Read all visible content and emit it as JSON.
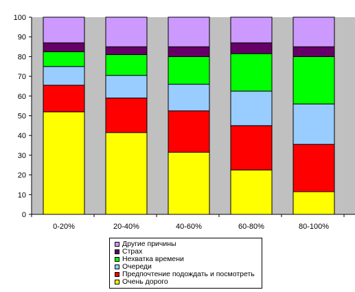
{
  "chart_data": {
    "type": "bar",
    "stacked": true,
    "categories": [
      "0-20%",
      "20-40%",
      "40-60%",
      "60-80%",
      "80-100%"
    ],
    "ylim": [
      0,
      100
    ],
    "yticks": [
      0,
      10,
      20,
      30,
      40,
      50,
      60,
      70,
      80,
      90,
      100
    ],
    "grid": false,
    "legend_position": "bottom",
    "series": [
      {
        "name": "Очень дорого",
        "color": "#ffff00",
        "values": [
          52,
          41.5,
          31.5,
          22.5,
          11.5
        ]
      },
      {
        "name": "Предпочтение подождать и посмотреть",
        "color": "#ff0000",
        "values": [
          13.5,
          17.5,
          21,
          22.5,
          24
        ]
      },
      {
        "name": "Очереди",
        "color": "#99ccff",
        "values": [
          9.5,
          11.5,
          13.5,
          17.5,
          20.5
        ]
      },
      {
        "name": "Нехватка времени",
        "color": "#00ff00",
        "values": [
          7.5,
          10.5,
          14,
          19,
          24
        ]
      },
      {
        "name": "Страх",
        "color": "#660066",
        "values": [
          4.5,
          4,
          5,
          5.5,
          5
        ]
      },
      {
        "name": "Другие причины",
        "color": "#cc99ff",
        "values": [
          13,
          15,
          15,
          13,
          15
        ]
      }
    ]
  }
}
